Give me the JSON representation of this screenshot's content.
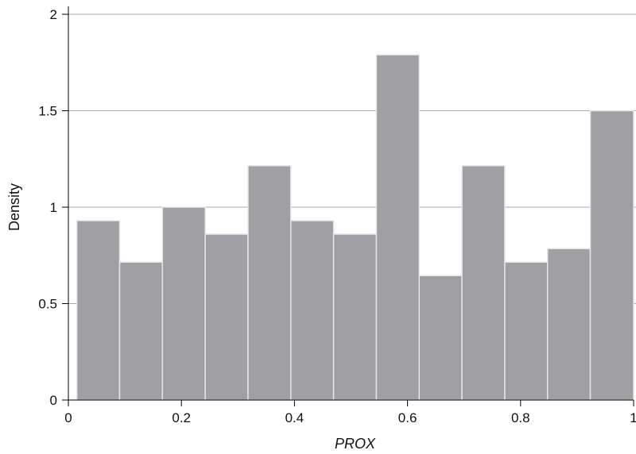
{
  "chart_data": {
    "type": "bar",
    "subtype": "histogram",
    "title": "",
    "xlabel": "PROX",
    "ylabel": "Density",
    "xlim": [
      0,
      1
    ],
    "ylim": [
      0,
      2
    ],
    "x_ticks": [
      {
        "value": 0,
        "label": "0"
      },
      {
        "value": 0.2,
        "label": "0.2"
      },
      {
        "value": 0.4,
        "label": "0.4"
      },
      {
        "value": 0.6,
        "label": "0.6"
      },
      {
        "value": 0.8,
        "label": "0.8"
      },
      {
        "value": 1,
        "label": "1"
      }
    ],
    "y_ticks": [
      {
        "value": 0,
        "label": "0"
      },
      {
        "value": 0.5,
        "label": "0.5"
      },
      {
        "value": 1,
        "label": "1"
      },
      {
        "value": 1.5,
        "label": "1.5"
      },
      {
        "value": 2,
        "label": "2"
      }
    ],
    "bin_edges": [
      0.015,
      0.0907,
      0.1664,
      0.2421,
      0.3178,
      0.3935,
      0.4692,
      0.5449,
      0.6206,
      0.6963,
      0.772,
      0.8477,
      0.9234,
      1.0
    ],
    "values": [
      0.93,
      0.715,
      1.0,
      0.86,
      1.215,
      0.93,
      0.86,
      1.79,
      0.645,
      1.215,
      0.715,
      0.785,
      1.5
    ],
    "grid": "horizontal",
    "colors": {
      "bar_fill": "#a0a0a4",
      "bar_edge": "#e6e6e6",
      "grid": "#a8a8a8",
      "axis": "#000000"
    }
  }
}
